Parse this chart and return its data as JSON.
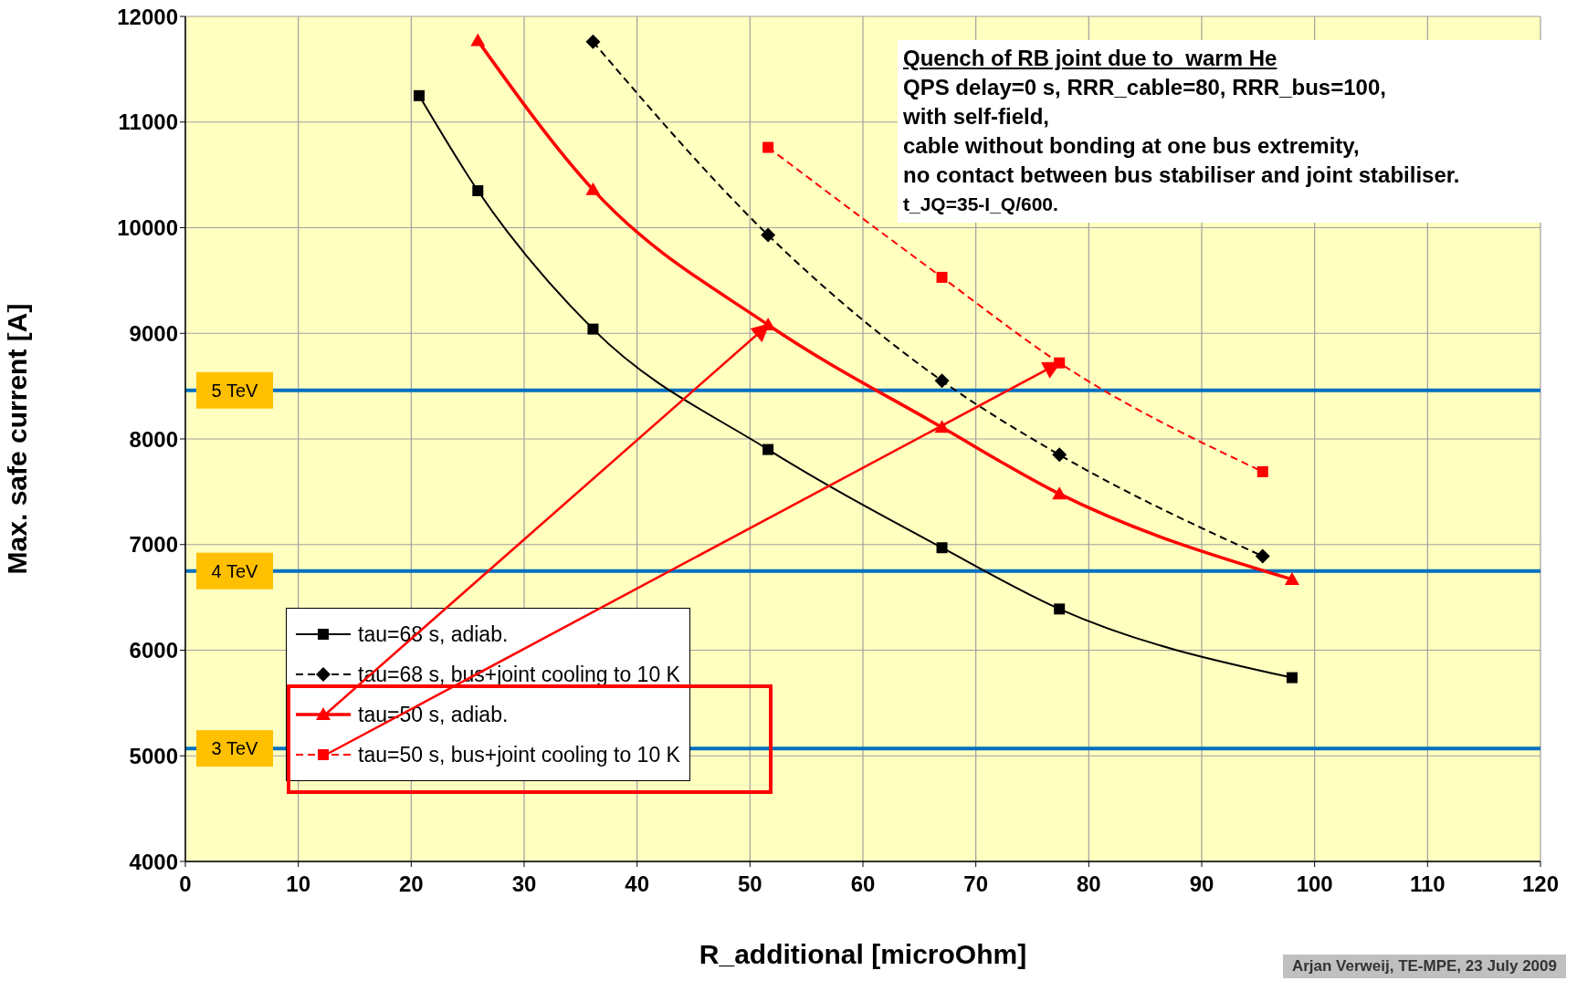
{
  "chart_data": {
    "type": "line",
    "xlabel": "R_additional [microOhm]",
    "ylabel": "Max. safe current [A]",
    "xlim": [
      0,
      120
    ],
    "xticks": [
      0,
      10,
      20,
      30,
      40,
      50,
      60,
      70,
      80,
      90,
      100,
      110,
      120
    ],
    "ylim": [
      4000,
      12000
    ],
    "yticks": [
      4000,
      5000,
      6000,
      7000,
      8000,
      9000,
      10000,
      11000,
      12000
    ],
    "grid": true,
    "legend": "bottom left",
    "series": [
      {
        "name": "tau=68 s, adiab.",
        "color": "#000000",
        "marker": "square",
        "line_style": "solid",
        "x": [
          20.7,
          25.9,
          36.1,
          51.6,
          67.0,
          77.4,
          98.0
        ],
        "values": [
          11250,
          10350,
          9040,
          7900,
          6970,
          6390,
          5740
        ]
      },
      {
        "name": "tau=68 s, bus+joint cooling to 10 K",
        "color": "#000000",
        "marker": "diamond",
        "line_style": "dashed",
        "x": [
          36.1,
          51.6,
          67.0,
          77.4,
          95.4
        ],
        "values": [
          11760,
          9930,
          8550,
          7850,
          6890
        ]
      },
      {
        "name": "tau=50 s, adiab.",
        "color": "#ff0000",
        "marker": "triangle",
        "line_style": "solid",
        "x": [
          25.9,
          36.1,
          51.6,
          67.0,
          77.4,
          98.0
        ],
        "values": [
          11770,
          10360,
          9080,
          8110,
          7480,
          6670
        ]
      },
      {
        "name": "tau=50 s, bus+joint cooling to 10 K",
        "color": "#ff0000",
        "marker": "square",
        "line_style": "dashed",
        "x": [
          51.6,
          67.0,
          77.4,
          95.4
        ],
        "values": [
          10760,
          9530,
          8720,
          7690
        ]
      }
    ],
    "ref_lines": [
      {
        "axis": "y",
        "value": 8460,
        "label": "5 TeV",
        "color": "#0070c0"
      },
      {
        "axis": "y",
        "value": 6750,
        "label": "4 TeV",
        "color": "#0070c0"
      },
      {
        "axis": "y",
        "value": 5070,
        "label": "3 TeV",
        "color": "#0070c0"
      }
    ],
    "annotations": [
      "Quench of RB joint due to  warm He",
      "QPS delay=0 s, RRR_cable=80, RRR_bus=100,",
      "with self-field,",
      "cable without bonding at one bus extremity,",
      "no contact between bus stabiliser and joint stabiliser.",
      "t_JQ=35-I_Q/600.",
      "Arjan Verweij, TE-MPE, 23 July 2009"
    ]
  }
}
